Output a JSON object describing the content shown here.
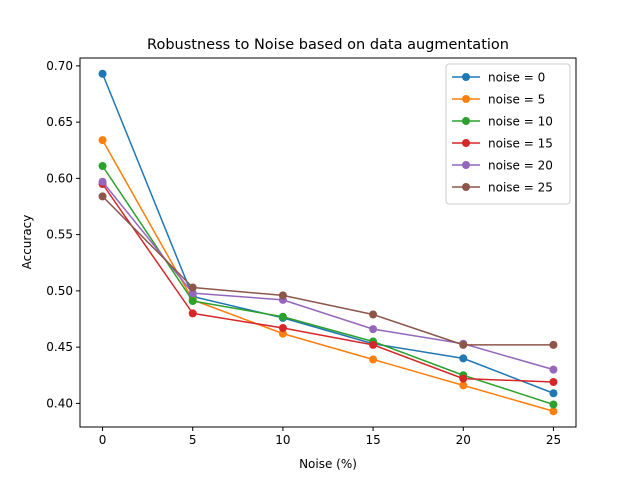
{
  "chart_data": {
    "type": "line",
    "title": "Robustness to Noise based on data augmentation",
    "xlabel": "Noise (%)",
    "ylabel": "Accuracy",
    "x": [
      0,
      5,
      10,
      15,
      20,
      25
    ],
    "xlim": [
      -1.25,
      26.25
    ],
    "ylim": [
      0.379,
      0.707
    ],
    "xticks": [
      0,
      5,
      10,
      15,
      20,
      25
    ],
    "yticks": [
      0.4,
      0.45,
      0.5,
      0.55,
      0.6,
      0.65,
      0.7
    ],
    "xtick_labels": [
      "0",
      "5",
      "10",
      "15",
      "20",
      "25"
    ],
    "ytick_labels": [
      "0.40",
      "0.45",
      "0.50",
      "0.55",
      "0.60",
      "0.65",
      "0.70"
    ],
    "grid": false,
    "legend_position": "top-right",
    "series": [
      {
        "name": "noise = 0",
        "color": "#1f77b4",
        "values": [
          0.693,
          0.495,
          0.476,
          0.453,
          0.44,
          0.409
        ]
      },
      {
        "name": "noise = 5",
        "color": "#ff7f0e",
        "values": [
          0.634,
          0.492,
          0.462,
          0.439,
          0.416,
          0.393
        ]
      },
      {
        "name": "noise = 10",
        "color": "#2ca02c",
        "values": [
          0.611,
          0.491,
          0.477,
          0.455,
          0.425,
          0.399
        ]
      },
      {
        "name": "noise = 15",
        "color": "#d62728",
        "values": [
          0.595,
          0.48,
          0.467,
          0.452,
          0.422,
          0.419
        ]
      },
      {
        "name": "noise = 20",
        "color": "#9467bd",
        "values": [
          0.597,
          0.498,
          0.492,
          0.466,
          0.453,
          0.43
        ]
      },
      {
        "name": "noise = 25",
        "color": "#8c564b",
        "values": [
          0.584,
          0.503,
          0.496,
          0.479,
          0.452,
          0.452
        ]
      }
    ]
  }
}
